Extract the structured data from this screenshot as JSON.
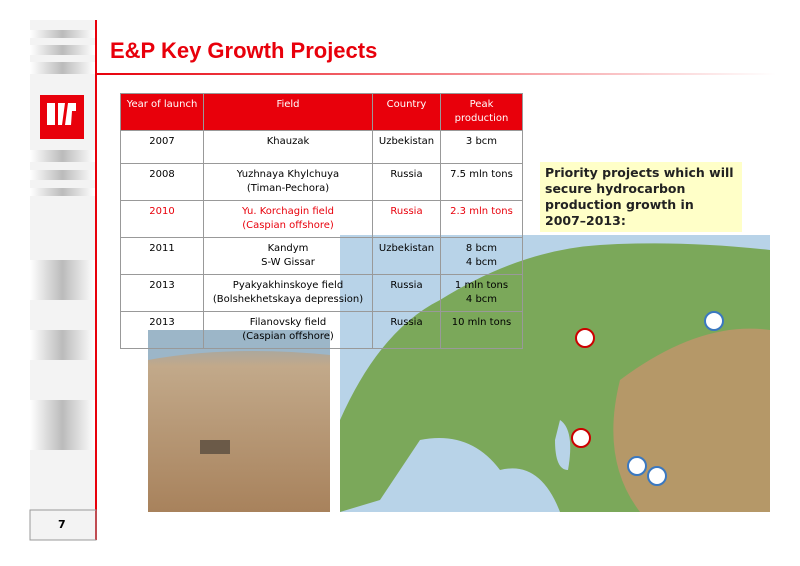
{
  "header": {
    "title": "E&P Key Growth Projects"
  },
  "table": {
    "columns": [
      "Year of launch",
      "Field",
      "Country",
      "Peak\nproduction"
    ],
    "rows": [
      {
        "cells": [
          "2007",
          "Khauzak",
          "Uzbekistan",
          "3 bcm"
        ],
        "color": "#000000"
      },
      {
        "cells": [
          "2008",
          "Yuzhnaya Khylchuya\n(Timan-Pechora)",
          "Russia",
          "7.5 mln tons"
        ],
        "color": "#000000"
      },
      {
        "cells": [
          "2010",
          "Yu. Korchagin field\n(Caspian offshore)",
          "Russia",
          "2.3 mln tons"
        ],
        "color": "#e8000b"
      },
      {
        "cells": [
          "2011",
          "Kandym\nS-W Gissar",
          "Uzbekistan",
          "8 bcm\n4 bcm"
        ],
        "color": "#000000"
      },
      {
        "cells": [
          "2013",
          "Pyakyakhinskoye field\n(Bolshekhetskaya depression)",
          "Russia",
          "1 mln tons\n4 bcm"
        ],
        "color": "#000000"
      },
      {
        "cells": [
          "2013",
          "Filanovsky field\n(Caspian offshore)",
          "Russia",
          "10 mln tons"
        ],
        "color": "#000000"
      }
    ]
  },
  "callout": {
    "text": "Priority projects which will secure hydrocarbon production growth in 2007–2013:"
  },
  "footer": {
    "page_number": "7"
  }
}
